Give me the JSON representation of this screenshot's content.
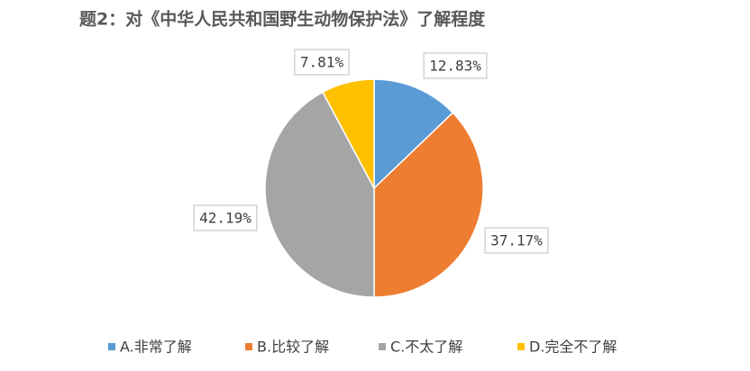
{
  "chart_data": {
    "type": "pie",
    "title": "题2：对《中华人民共和国野生动物保护法》了解程度",
    "categories": [
      "A.非常了解",
      "B.比较了解",
      "C.不太了解",
      "D.完全不了解"
    ],
    "values": [
      12.83,
      37.17,
      42.19,
      7.81
    ],
    "value_labels": [
      "12.83%",
      "37.17%",
      "42.19%",
      "7.81%"
    ],
    "colors": [
      "#5b9bd5",
      "#ed7d31",
      "#a5a5a5",
      "#ffc000"
    ],
    "legend": "bottom"
  }
}
